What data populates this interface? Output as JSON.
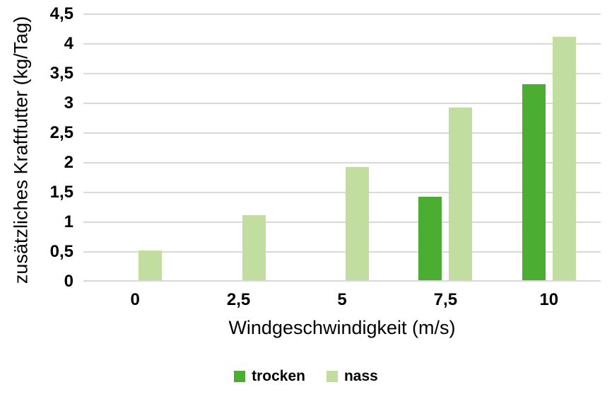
{
  "chart_data": {
    "type": "bar",
    "title": "",
    "categories": [
      "0",
      "2,5",
      "5",
      "7,5",
      "10"
    ],
    "series": [
      {
        "name": "trocken",
        "color": "#4cad33",
        "values": [
          0,
          0,
          0,
          1.4,
          3.3
        ]
      },
      {
        "name": "nass",
        "color": "#c1dda0",
        "values": [
          0.5,
          1.1,
          1.9,
          2.9,
          4.1
        ]
      }
    ],
    "xlabel": "Windgeschwindigkeit (m/s)",
    "ylabel": "zusätzliches Kraftfutter (kg/Tag)",
    "ylim": [
      0,
      4.5
    ],
    "ytick_step": 0.5,
    "ytick_labels": [
      "0",
      "0,5",
      "1",
      "1,5",
      "2",
      "2,5",
      "3",
      "3,5",
      "4",
      "4,5"
    ],
    "grid": "horizontal",
    "grid_color": "#d9d9d9",
    "text_color": "#000000",
    "legend_position": "bottom"
  }
}
